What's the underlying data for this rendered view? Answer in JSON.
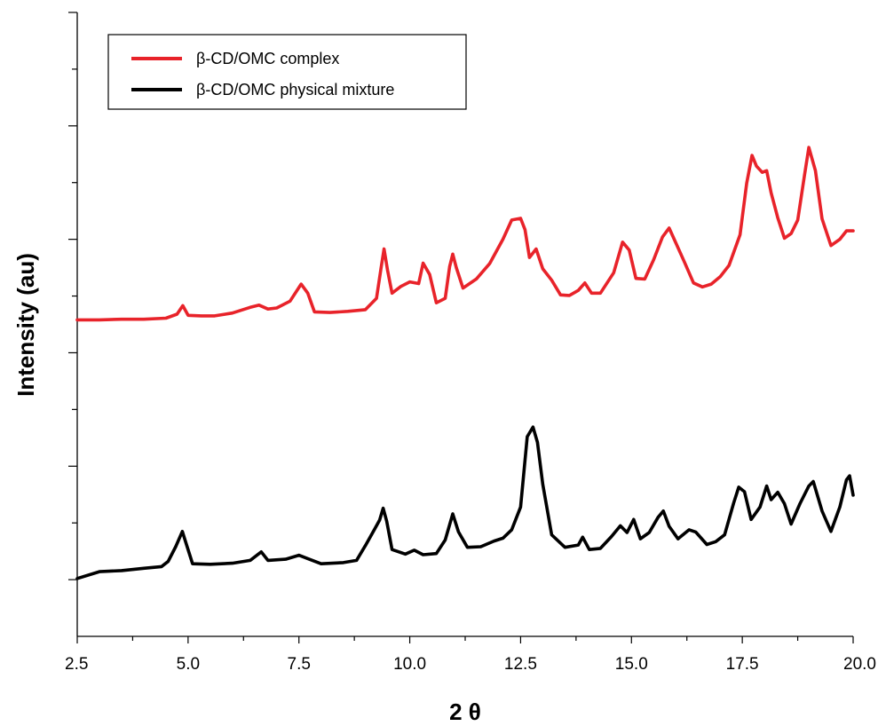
{
  "chart_data": {
    "type": "line",
    "title": "",
    "xlabel": "2 θ",
    "ylabel": "Intensity (au)",
    "xlim": [
      2.5,
      20.0
    ],
    "ylim": [
      0,
      110
    ],
    "x_ticks": [
      "2.5",
      "5.0",
      "7.5",
      "10.0",
      "12.5",
      "15.0",
      "17.5",
      "20.0"
    ],
    "x_tick_values": [
      2.5,
      5.0,
      7.5,
      10.0,
      12.5,
      15.0,
      17.5,
      20.0
    ],
    "y_tick_values": [
      10,
      30,
      50,
      70,
      90,
      110
    ],
    "y_tick_labels_shown": false,
    "grid": false,
    "legend_position": "top-left",
    "series": [
      {
        "name": "β-CD/OMC complex",
        "color": "#e8232a",
        "points": [
          [
            2.5,
            55.8
          ],
          [
            3.0,
            55.8
          ],
          [
            3.5,
            55.9
          ],
          [
            4.0,
            55.9
          ],
          [
            4.5,
            56.1
          ],
          [
            4.75,
            56.8
          ],
          [
            4.88,
            58.3
          ],
          [
            5.0,
            56.6
          ],
          [
            5.3,
            56.5
          ],
          [
            5.6,
            56.5
          ],
          [
            6.0,
            57.0
          ],
          [
            6.4,
            58.0
          ],
          [
            6.6,
            58.4
          ],
          [
            6.8,
            57.7
          ],
          [
            7.0,
            57.9
          ],
          [
            7.3,
            59.1
          ],
          [
            7.55,
            62.1
          ],
          [
            7.7,
            60.5
          ],
          [
            7.85,
            57.2
          ],
          [
            8.2,
            57.1
          ],
          [
            8.6,
            57.3
          ],
          [
            9.0,
            57.6
          ],
          [
            9.25,
            59.6
          ],
          [
            9.35,
            64.8
          ],
          [
            9.42,
            68.3
          ],
          [
            9.5,
            64.5
          ],
          [
            9.6,
            60.5
          ],
          [
            9.8,
            61.7
          ],
          [
            10.0,
            62.5
          ],
          [
            10.2,
            62.2
          ],
          [
            10.3,
            65.8
          ],
          [
            10.45,
            63.8
          ],
          [
            10.6,
            58.8
          ],
          [
            10.8,
            59.6
          ],
          [
            10.9,
            65.2
          ],
          [
            10.97,
            67.4
          ],
          [
            11.05,
            65.0
          ],
          [
            11.2,
            61.4
          ],
          [
            11.5,
            63.0
          ],
          [
            11.8,
            65.7
          ],
          [
            12.1,
            70.0
          ],
          [
            12.3,
            73.4
          ],
          [
            12.5,
            73.7
          ],
          [
            12.6,
            71.7
          ],
          [
            12.7,
            66.8
          ],
          [
            12.85,
            68.3
          ],
          [
            13.0,
            64.8
          ],
          [
            13.2,
            62.8
          ],
          [
            13.4,
            60.2
          ],
          [
            13.6,
            60.1
          ],
          [
            13.8,
            61.0
          ],
          [
            13.95,
            62.3
          ],
          [
            14.1,
            60.5
          ],
          [
            14.3,
            60.5
          ],
          [
            14.6,
            64.1
          ],
          [
            14.8,
            69.5
          ],
          [
            14.95,
            68.1
          ],
          [
            15.1,
            63.1
          ],
          [
            15.3,
            63.0
          ],
          [
            15.5,
            66.4
          ],
          [
            15.7,
            70.4
          ],
          [
            15.85,
            72.0
          ],
          [
            16.0,
            69.4
          ],
          [
            16.2,
            65.9
          ],
          [
            16.4,
            62.3
          ],
          [
            16.6,
            61.6
          ],
          [
            16.8,
            62.1
          ],
          [
            17.0,
            63.4
          ],
          [
            17.2,
            65.4
          ],
          [
            17.45,
            70.8
          ],
          [
            17.6,
            79.9
          ],
          [
            17.72,
            84.8
          ],
          [
            17.82,
            82.9
          ],
          [
            17.95,
            81.8
          ],
          [
            18.05,
            82.1
          ],
          [
            18.15,
            78.2
          ],
          [
            18.3,
            73.8
          ],
          [
            18.45,
            70.2
          ],
          [
            18.6,
            71.0
          ],
          [
            18.75,
            73.4
          ],
          [
            18.9,
            81.2
          ],
          [
            19.0,
            86.2
          ],
          [
            19.15,
            82.1
          ],
          [
            19.3,
            73.6
          ],
          [
            19.5,
            68.9
          ],
          [
            19.7,
            70.0
          ],
          [
            19.85,
            71.5
          ],
          [
            20.0,
            71.5
          ]
        ]
      },
      {
        "name": "β-CD/OMC physical mixture",
        "color": "#000000",
        "points": [
          [
            2.5,
            10.2
          ],
          [
            3.0,
            11.4
          ],
          [
            3.5,
            11.6
          ],
          [
            4.0,
            12.0
          ],
          [
            4.4,
            12.3
          ],
          [
            4.55,
            13.2
          ],
          [
            4.72,
            15.8
          ],
          [
            4.87,
            18.5
          ],
          [
            4.97,
            16.0
          ],
          [
            5.1,
            12.8
          ],
          [
            5.5,
            12.7
          ],
          [
            6.0,
            12.9
          ],
          [
            6.4,
            13.4
          ],
          [
            6.65,
            14.9
          ],
          [
            6.8,
            13.4
          ],
          [
            7.2,
            13.6
          ],
          [
            7.5,
            14.3
          ],
          [
            7.7,
            13.7
          ],
          [
            8.0,
            12.8
          ],
          [
            8.5,
            13.0
          ],
          [
            8.8,
            13.4
          ],
          [
            9.0,
            16.0
          ],
          [
            9.2,
            18.8
          ],
          [
            9.32,
            20.5
          ],
          [
            9.4,
            22.6
          ],
          [
            9.48,
            20.3
          ],
          [
            9.6,
            15.3
          ],
          [
            9.9,
            14.5
          ],
          [
            10.1,
            15.2
          ],
          [
            10.3,
            14.4
          ],
          [
            10.6,
            14.6
          ],
          [
            10.8,
            17.0
          ],
          [
            10.97,
            21.6
          ],
          [
            11.1,
            18.4
          ],
          [
            11.3,
            15.7
          ],
          [
            11.6,
            15.8
          ],
          [
            11.9,
            16.8
          ],
          [
            12.1,
            17.3
          ],
          [
            12.3,
            18.8
          ],
          [
            12.5,
            22.8
          ],
          [
            12.65,
            35.2
          ],
          [
            12.78,
            36.9
          ],
          [
            12.88,
            34.2
          ],
          [
            13.0,
            26.8
          ],
          [
            13.2,
            17.9
          ],
          [
            13.5,
            15.7
          ],
          [
            13.8,
            16.1
          ],
          [
            13.9,
            17.5
          ],
          [
            14.05,
            15.3
          ],
          [
            14.3,
            15.5
          ],
          [
            14.55,
            17.6
          ],
          [
            14.75,
            19.5
          ],
          [
            14.9,
            18.3
          ],
          [
            15.05,
            20.6
          ],
          [
            15.2,
            17.2
          ],
          [
            15.4,
            18.3
          ],
          [
            15.6,
            21.0
          ],
          [
            15.72,
            22.1
          ],
          [
            15.85,
            19.4
          ],
          [
            16.05,
            17.2
          ],
          [
            16.3,
            18.8
          ],
          [
            16.45,
            18.4
          ],
          [
            16.7,
            16.2
          ],
          [
            16.9,
            16.7
          ],
          [
            17.1,
            17.9
          ],
          [
            17.3,
            23.4
          ],
          [
            17.42,
            26.3
          ],
          [
            17.55,
            25.5
          ],
          [
            17.7,
            20.6
          ],
          [
            17.9,
            22.8
          ],
          [
            18.05,
            26.5
          ],
          [
            18.15,
            24.1
          ],
          [
            18.3,
            25.4
          ],
          [
            18.45,
            23.4
          ],
          [
            18.6,
            19.8
          ],
          [
            18.8,
            23.4
          ],
          [
            19.0,
            26.5
          ],
          [
            19.1,
            27.3
          ],
          [
            19.3,
            22.1
          ],
          [
            19.5,
            18.5
          ],
          [
            19.7,
            22.8
          ],
          [
            19.85,
            27.6
          ],
          [
            19.92,
            28.3
          ],
          [
            20.0,
            24.9
          ]
        ]
      }
    ]
  }
}
